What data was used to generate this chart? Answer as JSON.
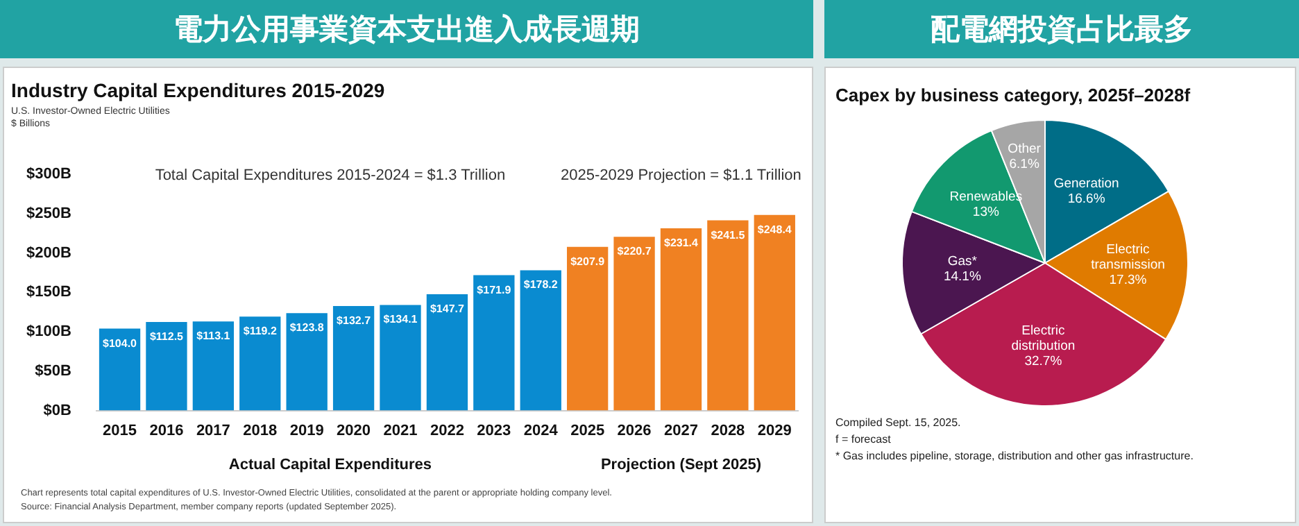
{
  "chart_data": [
    {
      "type": "bar",
      "title": "電力公用事業資本支出進入成長週期",
      "subtitle": "Industry Capital Expenditures 2015-2029",
      "ylabel": "$ Billions",
      "categories": [
        "2015",
        "2016",
        "2017",
        "2018",
        "2019",
        "2020",
        "2021",
        "2022",
        "2023",
        "2024",
        "2025",
        "2026",
        "2027",
        "2028",
        "2029"
      ],
      "values": [
        104.0,
        112.5,
        113.1,
        119.2,
        123.8,
        132.7,
        134.1,
        147.7,
        171.9,
        178.2,
        207.9,
        220.7,
        231.4,
        241.5,
        248.4
      ],
      "colors": [
        "#0a8bd0",
        "#0a8bd0",
        "#0a8bd0",
        "#0a8bd0",
        "#0a8bd0",
        "#0a8bd0",
        "#0a8bd0",
        "#0a8bd0",
        "#0a8bd0",
        "#0a8bd0",
        "#f08122",
        "#f08122",
        "#f08122",
        "#f08122",
        "#f08122"
      ],
      "value_labels": [
        "$104.0",
        "$112.5",
        "$113.1",
        "$119.2",
        "$123.8",
        "$132.7",
        "$134.1",
        "$147.7",
        "$171.9",
        "$178.2",
        "$207.9",
        "$220.7",
        "$231.4",
        "$241.5",
        "$248.4"
      ],
      "ylim": [
        0,
        300
      ],
      "yticks": [
        {
          "value": 0,
          "label": "$0B"
        },
        {
          "value": 50,
          "label": "$50B"
        },
        {
          "value": 100,
          "label": "$100B"
        },
        {
          "value": 150,
          "label": "$150B"
        },
        {
          "value": 200,
          "label": "$200B"
        },
        {
          "value": 250,
          "label": "$250B"
        },
        {
          "value": 300,
          "label": "$300B"
        }
      ],
      "grid": false,
      "legend": false,
      "annotations": [
        "U.S. Investor-Owned Electric Utilities",
        "Total Capital Expenditures 2015-2024 = $1.3 Trillion",
        "2025-2029 Projection = $1.1 Trillion",
        "Actual Capital Expenditures",
        "Projection (Sept 2025)",
        "Chart represents total capital expenditures of U.S. Investor-Owned Electric Utilities, consolidated at the parent or appropriate holding company level.",
        "Source: Financial Analysis Department, member company reports (updated September 2025)."
      ]
    },
    {
      "type": "pie",
      "title": "配電網投資占比最多",
      "subtitle": "Capex by business category, 2025f–2028f",
      "categories": [
        "Generation",
        "Electric transmission",
        "Electric distribution",
        "Gas*",
        "Renewables",
        "Other"
      ],
      "values": [
        16.6,
        17.3,
        32.7,
        14.1,
        13,
        6.1
      ],
      "colors": [
        "#006d87",
        "#e07b00",
        "#b81c4f",
        "#4b1650",
        "#12996f",
        "#a6a6a6"
      ],
      "value_labels": [
        "16.6%",
        "17.3%",
        "32.7%",
        "14.1%",
        "13%",
        "6.1%"
      ],
      "legend": false,
      "annotations": [
        "Compiled Sept. 15, 2025.",
        "f = forecast",
        "* Gas includes pipeline, storage, distribution and other gas infrastructure."
      ]
    }
  ]
}
